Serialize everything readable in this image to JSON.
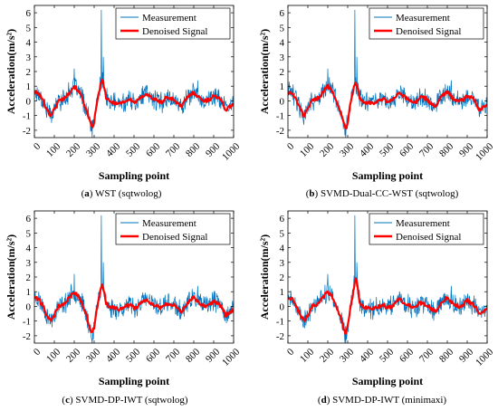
{
  "chart_data": [
    {
      "type": "line",
      "panel": "a",
      "caption": {
        "label": "a",
        "text": " WST (sqtwolog)"
      },
      "xlabel": "Sampling point",
      "ylabel": "Acceleration(m/s²)",
      "xlim": [
        0,
        1000
      ],
      "ylim": [
        -2.5,
        6.5
      ],
      "xticks": [
        "0",
        "100",
        "200",
        "300",
        "400",
        "500",
        "600",
        "700",
        "800",
        "900",
        "1000"
      ],
      "yticks": [
        "-2",
        "-1",
        "0",
        "1",
        "2",
        "3",
        "4",
        "5",
        "6"
      ],
      "legend": "top-right",
      "grid": false,
      "series": [
        {
          "name": "Measurement",
          "color": "#0072BD",
          "role": "measurement"
        },
        {
          "name": "Denoised Signal",
          "color": "#FF0000",
          "role": "denoised"
        }
      ],
      "x": [
        0,
        20,
        40,
        60,
        80,
        100,
        120,
        140,
        160,
        180,
        200,
        220,
        240,
        260,
        280,
        290,
        300,
        310,
        320,
        330,
        340,
        350,
        360,
        380,
        400,
        420,
        440,
        460,
        480,
        500,
        520,
        540,
        560,
        580,
        600,
        620,
        640,
        660,
        680,
        700,
        720,
        740,
        760,
        780,
        800,
        820,
        840,
        860,
        880,
        900,
        920,
        940,
        960,
        980,
        1000
      ],
      "denoised": [
        0.6,
        0.5,
        0.1,
        -0.5,
        -1.0,
        -0.6,
        0.0,
        0.1,
        0.3,
        0.7,
        1.0,
        0.7,
        0.2,
        -0.6,
        -1.5,
        -1.9,
        -1.4,
        -0.5,
        0.3,
        1.0,
        1.4,
        1.0,
        0.2,
        -0.1,
        -0.1,
        -0.2,
        -0.1,
        0.0,
        0.1,
        -0.1,
        0.0,
        0.3,
        0.5,
        0.3,
        0.1,
        0.0,
        -0.1,
        0.2,
        0.2,
        0.1,
        -0.2,
        -0.4,
        0.1,
        0.4,
        0.6,
        0.3,
        0.1,
        0.0,
        0.1,
        0.4,
        0.2,
        0.0,
        -0.6,
        -0.4,
        -0.2
      ],
      "spikes": [
        {
          "x": 335,
          "y": 6.2
        },
        {
          "x": 200,
          "y": 2.2
        },
        {
          "x": 290,
          "y": -2.6
        },
        {
          "x": 345,
          "y": 3.0
        },
        {
          "x": 820,
          "y": 1.4
        }
      ]
    },
    {
      "type": "line",
      "panel": "b",
      "caption": {
        "label": "b",
        "text": " SVMD-Dual-CC-WST (sqtwolog)"
      },
      "xlabel": "Sampling point",
      "ylabel": "Acceleration(m/s²)",
      "xlim": [
        0,
        1000
      ],
      "ylim": [
        -2.5,
        6.5
      ],
      "xticks": [
        "0",
        "100",
        "200",
        "300",
        "400",
        "500",
        "600",
        "700",
        "800",
        "900",
        "1000"
      ],
      "yticks": [
        "-2",
        "-1",
        "0",
        "1",
        "2",
        "3",
        "4",
        "5",
        "6"
      ],
      "legend": "top-right",
      "grid": false,
      "series": [
        {
          "name": "Measurement",
          "color": "#0072BD",
          "role": "measurement"
        },
        {
          "name": "Denoised Signal",
          "color": "#FF0000",
          "role": "denoised"
        }
      ],
      "x": [
        0,
        20,
        40,
        60,
        80,
        100,
        120,
        140,
        160,
        180,
        200,
        220,
        240,
        260,
        280,
        290,
        300,
        310,
        320,
        330,
        340,
        350,
        360,
        380,
        400,
        420,
        440,
        460,
        480,
        500,
        520,
        540,
        560,
        580,
        600,
        620,
        640,
        660,
        680,
        700,
        720,
        740,
        760,
        780,
        800,
        820,
        840,
        860,
        880,
        900,
        920,
        940,
        960,
        980,
        1000
      ],
      "denoised": [
        0.6,
        0.5,
        0.1,
        -0.5,
        -1.0,
        -0.6,
        0.0,
        0.1,
        0.3,
        0.7,
        1.0,
        0.7,
        0.2,
        -0.6,
        -1.5,
        -1.9,
        -1.4,
        -0.5,
        0.3,
        1.0,
        1.3,
        0.9,
        0.2,
        -0.1,
        -0.1,
        -0.2,
        -0.1,
        0.0,
        0.1,
        -0.1,
        0.0,
        0.3,
        0.5,
        0.3,
        0.1,
        0.0,
        -0.1,
        0.2,
        0.2,
        0.1,
        -0.2,
        -0.4,
        0.1,
        0.4,
        0.6,
        0.3,
        0.1,
        0.0,
        0.1,
        0.4,
        0.2,
        0.0,
        -0.6,
        -0.4,
        -0.2
      ],
      "spikes": [
        {
          "x": 335,
          "y": 6.2
        },
        {
          "x": 200,
          "y": 2.2
        },
        {
          "x": 290,
          "y": -2.6
        },
        {
          "x": 345,
          "y": 3.0
        },
        {
          "x": 820,
          "y": 1.4
        }
      ]
    },
    {
      "type": "line",
      "panel": "c",
      "caption": {
        "label": "c",
        "text": " SVMD-DP-IWT (sqtwolog)"
      },
      "xlabel": "Sampling point",
      "ylabel": "Acceleration(m/s²)",
      "xlim": [
        0,
        1000
      ],
      "ylim": [
        -2.5,
        6.5
      ],
      "xticks": [
        "0",
        "100",
        "200",
        "300",
        "400",
        "500",
        "600",
        "700",
        "800",
        "900",
        "1000"
      ],
      "yticks": [
        "-2",
        "-1",
        "0",
        "1",
        "2",
        "3",
        "4",
        "5",
        "6"
      ],
      "legend": "top-right",
      "grid": false,
      "series": [
        {
          "name": "Measurement",
          "color": "#0072BD",
          "role": "measurement"
        },
        {
          "name": "Denoised Signal",
          "color": "#FF0000",
          "role": "denoised"
        }
      ],
      "x": [
        0,
        20,
        40,
        60,
        80,
        100,
        120,
        140,
        160,
        180,
        200,
        220,
        240,
        260,
        280,
        290,
        300,
        310,
        320,
        330,
        340,
        350,
        360,
        380,
        400,
        420,
        440,
        460,
        480,
        500,
        520,
        540,
        560,
        580,
        600,
        620,
        640,
        660,
        680,
        700,
        720,
        740,
        760,
        780,
        800,
        820,
        840,
        860,
        880,
        900,
        920,
        940,
        960,
        980,
        1000
      ],
      "denoised": [
        0.6,
        0.5,
        0.1,
        -0.5,
        -1.0,
        -0.6,
        0.0,
        0.1,
        0.3,
        0.7,
        1.0,
        0.7,
        0.2,
        -0.6,
        -1.5,
        -1.9,
        -1.4,
        -0.5,
        0.3,
        1.0,
        1.4,
        1.0,
        0.2,
        -0.1,
        -0.1,
        -0.2,
        -0.1,
        0.0,
        0.1,
        -0.1,
        0.0,
        0.3,
        0.5,
        0.3,
        0.1,
        0.0,
        -0.1,
        0.2,
        0.2,
        0.1,
        -0.2,
        -0.4,
        0.1,
        0.4,
        0.6,
        0.3,
        0.1,
        0.0,
        0.1,
        0.4,
        0.2,
        0.0,
        -0.6,
        -0.4,
        -0.2
      ],
      "spikes": [
        {
          "x": 335,
          "y": 6.2
        },
        {
          "x": 200,
          "y": 2.2
        },
        {
          "x": 290,
          "y": -2.6
        },
        {
          "x": 345,
          "y": 3.0
        },
        {
          "x": 820,
          "y": 1.4
        }
      ]
    },
    {
      "type": "line",
      "panel": "d",
      "caption": {
        "label": "d",
        "text": " SVMD-DP-IWT (minimaxi)"
      },
      "xlabel": "Sampling point",
      "ylabel": "Acceleration(m/s²)",
      "xlim": [
        0,
        1000
      ],
      "ylim": [
        -2.5,
        6.5
      ],
      "xticks": [
        "0",
        "100",
        "200",
        "300",
        "400",
        "500",
        "600",
        "700",
        "800",
        "900",
        "1000"
      ],
      "yticks": [
        "-2",
        "-1",
        "0",
        "1",
        "2",
        "3",
        "4",
        "5",
        "6"
      ],
      "legend": "top-right",
      "grid": false,
      "series": [
        {
          "name": "Measurement",
          "color": "#0072BD",
          "role": "measurement"
        },
        {
          "name": "Denoised Signal",
          "color": "#FF0000",
          "role": "denoised"
        }
      ],
      "x": [
        0,
        20,
        40,
        60,
        80,
        100,
        120,
        140,
        160,
        180,
        200,
        220,
        240,
        260,
        280,
        290,
        300,
        310,
        320,
        330,
        340,
        350,
        360,
        380,
        400,
        420,
        440,
        460,
        480,
        500,
        520,
        540,
        560,
        580,
        600,
        620,
        640,
        660,
        680,
        700,
        720,
        740,
        760,
        780,
        800,
        820,
        840,
        860,
        880,
        900,
        920,
        940,
        960,
        980,
        1000
      ],
      "denoised": [
        0.6,
        0.5,
        0.1,
        -0.5,
        -1.0,
        -0.6,
        0.0,
        0.1,
        0.3,
        0.7,
        1.0,
        0.7,
        0.2,
        -0.6,
        -1.5,
        -1.9,
        -1.4,
        -0.5,
        0.3,
        1.2,
        1.9,
        1.4,
        0.3,
        -0.1,
        -0.1,
        -0.2,
        -0.1,
        0.0,
        0.1,
        -0.1,
        0.0,
        0.3,
        0.5,
        0.3,
        0.1,
        0.0,
        -0.1,
        0.2,
        0.2,
        0.1,
        -0.2,
        -0.4,
        0.1,
        0.4,
        0.6,
        0.3,
        0.1,
        0.0,
        0.1,
        0.4,
        0.2,
        0.0,
        -0.6,
        -0.4,
        -0.2
      ],
      "spikes": [
        {
          "x": 335,
          "y": 6.2
        },
        {
          "x": 200,
          "y": 2.2
        },
        {
          "x": 290,
          "y": -2.6
        },
        {
          "x": 345,
          "y": 3.0
        },
        {
          "x": 820,
          "y": 1.4
        }
      ]
    }
  ]
}
